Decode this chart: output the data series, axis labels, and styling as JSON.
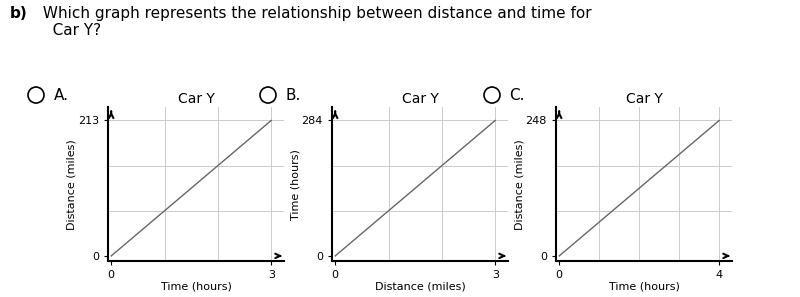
{
  "question_bold": "b)",
  "question_rest": " Which graph represents the relationship between distance and time for\n   Car Y?",
  "options": [
    "A.",
    "B.",
    "C."
  ],
  "graphs": [
    {
      "title": "Car Y",
      "xlabel": "Time (hours)",
      "ylabel": "Distance (miles)",
      "xmax": 3,
      "ymax": 213,
      "show_ytick_label": true,
      "show_xtick_label": true,
      "x_data": [
        0,
        3
      ],
      "y_data": [
        0,
        213
      ],
      "n_xgrid": 3,
      "n_ygrid": 3
    },
    {
      "title": "Car Y",
      "xlabel": "Distance (miles)",
      "ylabel": "Time (hours)",
      "xmax": 3,
      "ymax": 284,
      "show_ytick_label": true,
      "show_xtick_label": true,
      "x_data": [
        0,
        3
      ],
      "y_data": [
        0,
        284
      ],
      "n_xgrid": 3,
      "n_ygrid": 3
    },
    {
      "title": "Car Y",
      "xlabel": "Time (hours)",
      "ylabel": "Distance (miles)",
      "xmax": 4,
      "ymax": 248,
      "show_ytick_label": true,
      "show_xtick_label": true,
      "x_data": [
        0,
        4
      ],
      "y_data": [
        0,
        248
      ],
      "n_xgrid": 4,
      "n_ygrid": 3
    }
  ],
  "line_color": "#666666",
  "grid_color": "#cccccc",
  "axis_color": "#000000",
  "bg_color": "#ffffff",
  "text_color": "#000000",
  "font_size_title": 10,
  "font_size_label": 8,
  "font_size_tick": 8,
  "font_size_question": 11,
  "font_size_option": 11
}
